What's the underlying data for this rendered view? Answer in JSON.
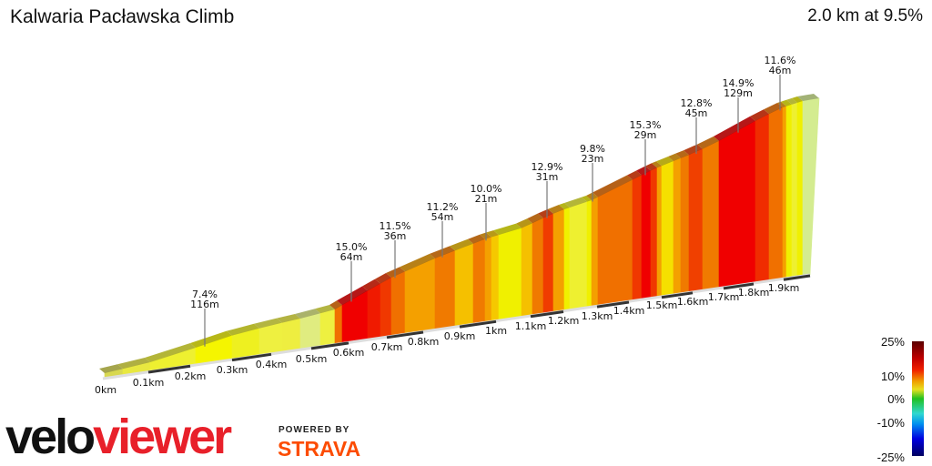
{
  "header": {
    "title": "Kalwaria Pacławska Climb",
    "summary": "2.0 km at 9.5%"
  },
  "chart_data": {
    "type": "area",
    "title": "Kalwaria Pacławska Climb",
    "x_ticks": [
      "0km",
      "0.1km",
      "0.2km",
      "0.3km",
      "0.4km",
      "0.5km",
      "0.6km",
      "0.7km",
      "0.8km",
      "0.9km",
      "1km",
      "1.1km",
      "1.2km",
      "1.3km",
      "1.4km",
      "1.5km",
      "1.6km",
      "1.7km",
      "1.8km",
      "1.9km"
    ],
    "xlim_km": [
      0,
      2.0
    ],
    "annotations": [
      {
        "grade": "7.4%",
        "length": "116m"
      },
      {
        "grade": "15.0%",
        "length": "64m"
      },
      {
        "grade": "11.5%",
        "length": "36m"
      },
      {
        "grade": "11.2%",
        "length": "54m"
      },
      {
        "grade": "10.0%",
        "length": "21m"
      },
      {
        "grade": "12.9%",
        "length": "31m"
      },
      {
        "grade": "9.8%",
        "length": "23m"
      },
      {
        "grade": "15.3%",
        "length": "29m"
      },
      {
        "grade": "12.8%",
        "length": "45m"
      },
      {
        "grade": "14.9%",
        "length": "129m"
      },
      {
        "grade": "11.6%",
        "length": "46m"
      }
    ],
    "segment_colors": [
      "#d8d850",
      "#e8e840",
      "#eef030",
      "#f5f500",
      "#eef020",
      "#eef040",
      "#eeee40",
      "#e0ec80",
      "#eef040",
      "#f07000",
      "#f00000",
      "#f01a00",
      "#f03800",
      "#f07000",
      "#f4a000",
      "#f07a00",
      "#f5c000",
      "#f07a00",
      "#f4a000",
      "#f5c800",
      "#f0f000",
      "#f5c000",
      "#f07a00",
      "#f03c00",
      "#f4a000",
      "#f0f000",
      "#eef030",
      "#f0f000",
      "#f4a000",
      "#f07000",
      "#f03800",
      "#f00000",
      "#f03800",
      "#f4a000",
      "#f5e000",
      "#f4a000",
      "#f07a00",
      "#f04000",
      "#f07a00",
      "#f00000",
      "#f02c00",
      "#f07000",
      "#f4a000",
      "#f0f000",
      "#eef030",
      "#f0f000",
      "#d4ec90"
    ],
    "legend": {
      "labels": [
        "25%",
        "10%",
        "0%",
        "-10%",
        "-25%"
      ],
      "placement": "bottom-right"
    }
  },
  "branding": {
    "logo_velo": "velo",
    "logo_viewer": "viewer",
    "powered_by": "POWERED BY",
    "strava": "STRAVA"
  }
}
